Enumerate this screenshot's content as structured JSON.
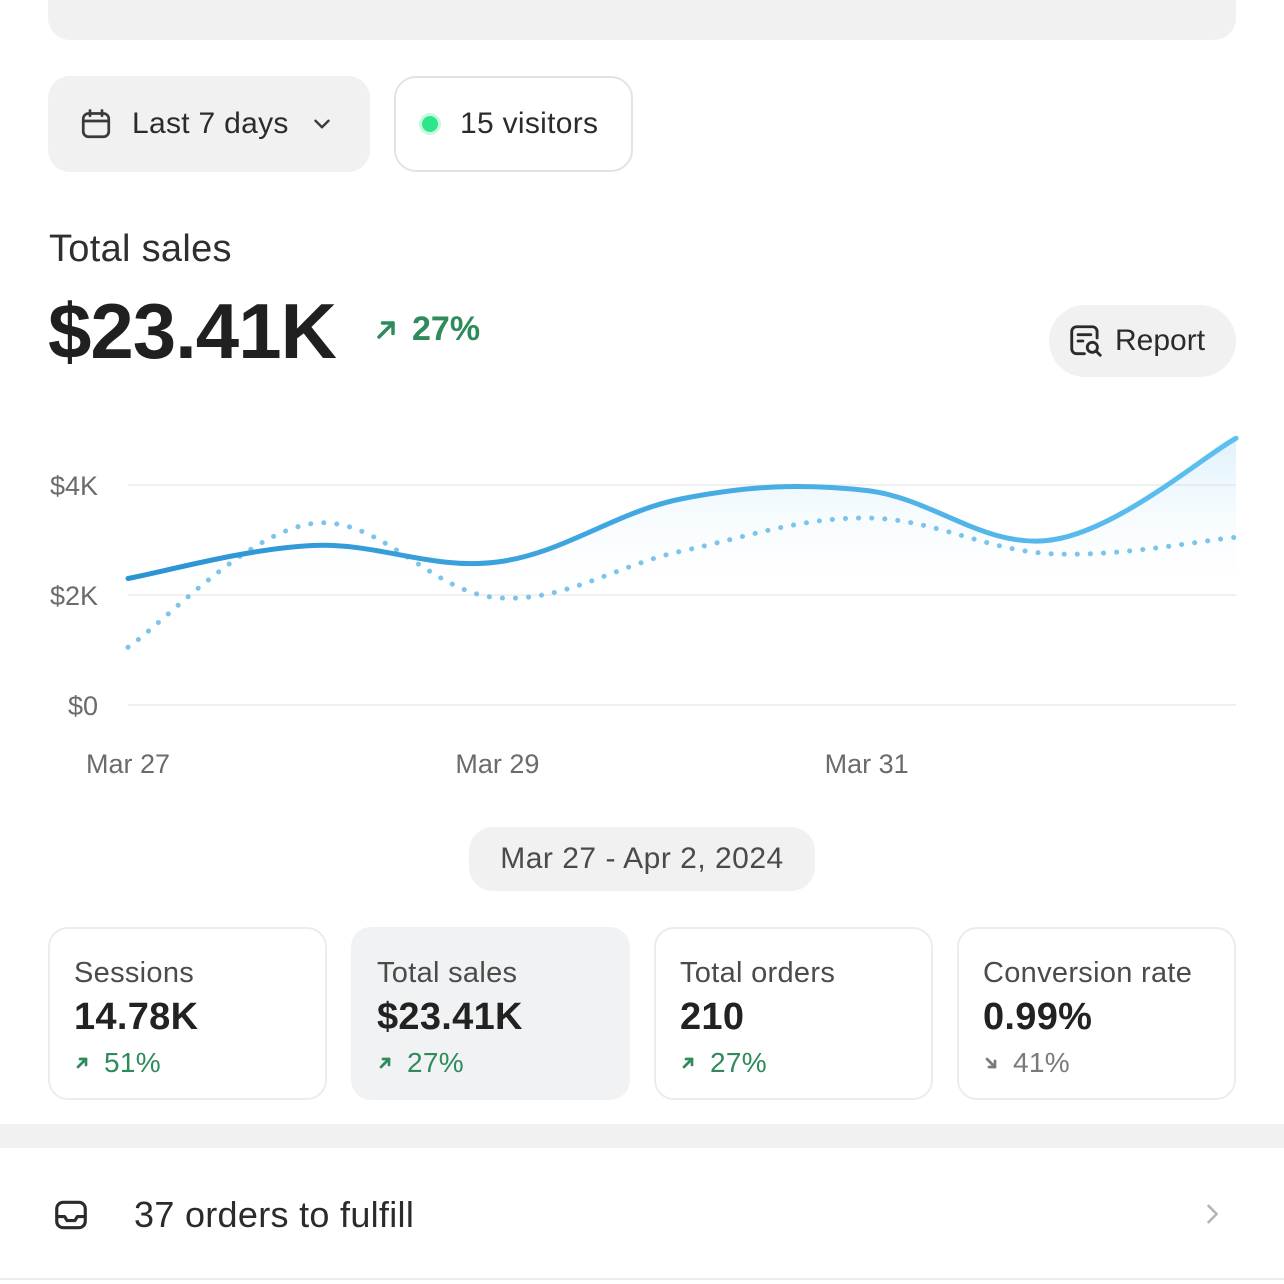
{
  "filters": {
    "date_range_label": "Last 7 days",
    "visitors_label": "15 visitors"
  },
  "summary": {
    "title": "Total sales",
    "value": "$23.41K",
    "delta": "27%",
    "report_label": "Report"
  },
  "chart_data": {
    "type": "line",
    "x": [
      "Mar 27",
      "Mar 28",
      "Mar 29",
      "Mar 30",
      "Mar 31",
      "Apr 1",
      "Apr 2"
    ],
    "x_tick_labels": [
      "Mar 27",
      "Mar 29",
      "Mar 31"
    ],
    "y_tick_labels": [
      "$4K",
      "$2K",
      "$0"
    ],
    "ylim": [
      0,
      4000
    ],
    "series": [
      {
        "style": "solid",
        "color": "#2f9fdd",
        "values": [
          2300,
          2900,
          2600,
          3750,
          3900,
          3000,
          4850
        ]
      },
      {
        "style": "dotted",
        "color": "#7cc4ea",
        "values": [
          1050,
          3300,
          1950,
          2800,
          3400,
          2750,
          3050
        ]
      }
    ]
  },
  "date_range_display": "Mar 27 - Apr 2, 2024",
  "metrics": [
    {
      "label": "Sessions",
      "value": "14.78K",
      "delta": "51%",
      "direction": "up"
    },
    {
      "label": "Total sales",
      "value": "$23.41K",
      "delta": "27%",
      "direction": "up",
      "selected": true
    },
    {
      "label": "Total orders",
      "value": "210",
      "delta": "27%",
      "direction": "up"
    },
    {
      "label": "Conversion rate",
      "value": "0.99%",
      "delta": "41%",
      "direction": "down"
    }
  ],
  "fulfill": {
    "label": "37 orders to fulfill"
  },
  "colors": {
    "positive": "#2f8a5c",
    "neutral_delta": "#7a7a7a",
    "live_dot": "#2ee58a",
    "chart_line": "#2f9fdd"
  }
}
